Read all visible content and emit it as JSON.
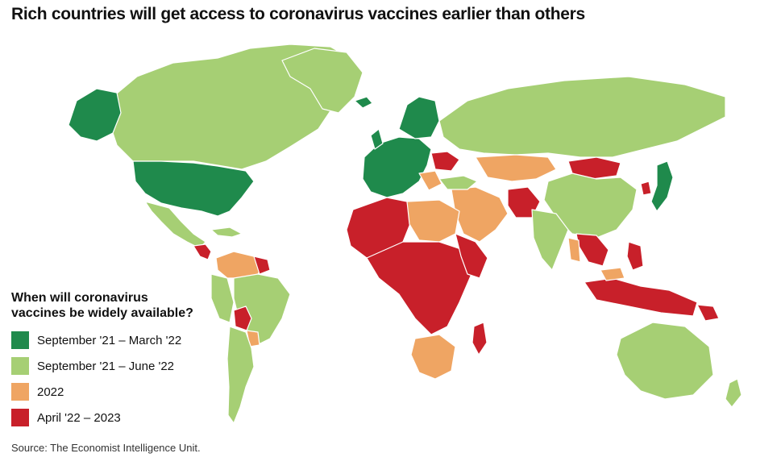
{
  "title": "Rich countries will get access to coronavirus vaccines earlier than others",
  "legend": {
    "heading_line1": "When will coronavirus",
    "heading_line2": "vaccines be widely available?",
    "items": [
      {
        "label": "September '21 – March '22",
        "color": "#1f8a4c"
      },
      {
        "label": "September '21 – June '22",
        "color": "#a6cf74"
      },
      {
        "label": "2022",
        "color": "#efa563"
      },
      {
        "label": "April '22 – 2023",
        "color": "#c8202a"
      }
    ]
  },
  "source": "Source: The Economist Intelligence Unit.",
  "colors": {
    "dark_green": "#1f8a4c",
    "light_green": "#a6cf74",
    "orange": "#efa563",
    "red": "#c8202a",
    "border": "#ffffff"
  }
}
